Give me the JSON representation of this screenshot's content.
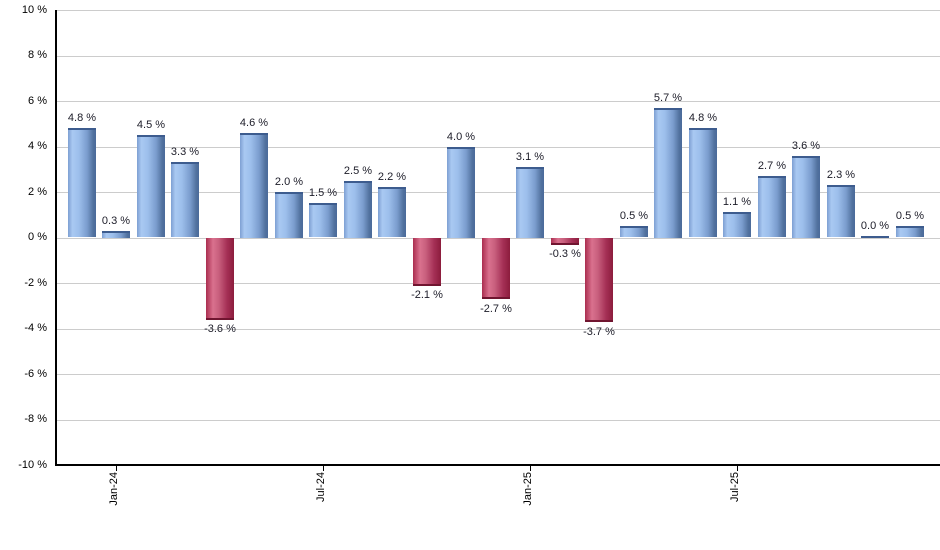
{
  "chart_data": {
    "type": "bar",
    "title": "",
    "xlabel": "",
    "ylabel": "",
    "ylim": [
      -10,
      10
    ],
    "grid": true,
    "values": [
      4.8,
      0.3,
      4.5,
      3.3,
      -3.6,
      4.6,
      2.0,
      1.5,
      2.5,
      2.2,
      -2.1,
      4.0,
      -2.7,
      3.1,
      -0.3,
      -3.7,
      0.5,
      5.7,
      4.8,
      1.1,
      2.7,
      3.6,
      2.3,
      0.0,
      0.5
    ],
    "bar_labels": [
      "4.8 %",
      "0.3 %",
      "4.5 %",
      "3.3 %",
      "-3.6 %",
      "4.6 %",
      "2.0 %",
      "1.5 %",
      "2.5 %",
      "2.2 %",
      "-2.1 %",
      "4.0 %",
      "-2.7 %",
      "3.1 %",
      "-0.3 %",
      "-3.7 %",
      "0.5 %",
      "5.7 %",
      "4.8 %",
      "1.1 %",
      "2.7 %",
      "3.6 %",
      "2.3 %",
      "0.0 %",
      "0.5 %"
    ],
    "y_ticks": [
      10,
      8,
      6,
      4,
      2,
      0,
      -2,
      -4,
      -6,
      -8,
      -10
    ],
    "y_tick_labels": [
      "10 %",
      "8 %",
      "6 %",
      "4 %",
      "2 %",
      "0 %",
      "-2 %",
      "-4 %",
      "-6 %",
      "-8 %",
      "-10 %"
    ],
    "x_ticks": [
      {
        "index": 1,
        "label": "Jan-24"
      },
      {
        "index": 7,
        "label": "Jul-24"
      },
      {
        "index": 13,
        "label": "Jan-25"
      },
      {
        "index": 19,
        "label": "Jul-25"
      }
    ],
    "colors": {
      "positive_bar": "#89abda",
      "negative_bar": "#c05572",
      "gridline": "#cccccc",
      "axis": "#000000",
      "value_label_text": "#1c1c28"
    }
  }
}
